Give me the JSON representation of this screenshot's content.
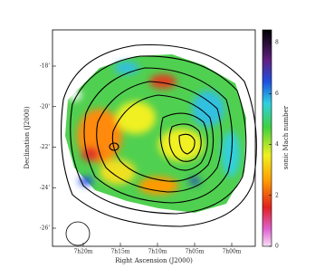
{
  "chart_data": {
    "type": "map",
    "xlabel": "Right Ascension (J2000)",
    "ylabel": "Declination (J2000)",
    "xtick_labels": [
      "7h20m",
      "7h15m",
      "7h10m",
      "7h05m",
      "7h00m"
    ],
    "ytick_labels": [
      "-18'",
      "-20'",
      "-22'",
      "-24'",
      "-26'"
    ],
    "colorbar": {
      "label": "sonic Mach number",
      "lim": [
        0,
        8.5
      ],
      "ticks": [
        0,
        2,
        4,
        6,
        8
      ]
    }
  }
}
